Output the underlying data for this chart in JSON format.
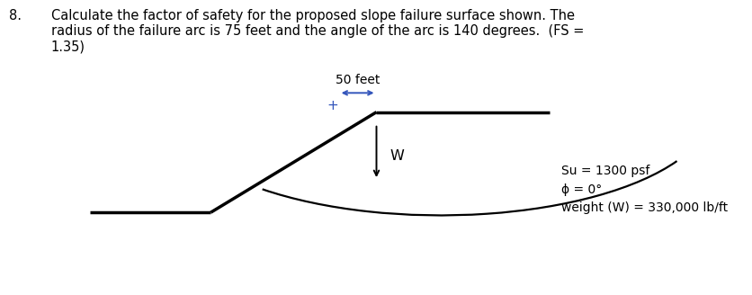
{
  "title_number": "8.",
  "title_text": "Calculate the factor of safety for the proposed slope failure surface shown. The\nradius of the failure arc is 75 feet and the angle of the arc is 140 degrees.  (FS =\n1.35)",
  "label_50feet": "50 feet",
  "label_W": "W",
  "label_Su": "Su = 1300 psf",
  "label_phi": "ϕ = 0°",
  "label_weight": "weight (W) = 330,000 lb/ft",
  "line_color": "#000000",
  "line_width": 2.5,
  "arc_color": "#000000",
  "arc_linewidth": 1.6,
  "bg_color": "#ffffff",
  "title_fontsize": 10.5,
  "label_fontsize": 10
}
